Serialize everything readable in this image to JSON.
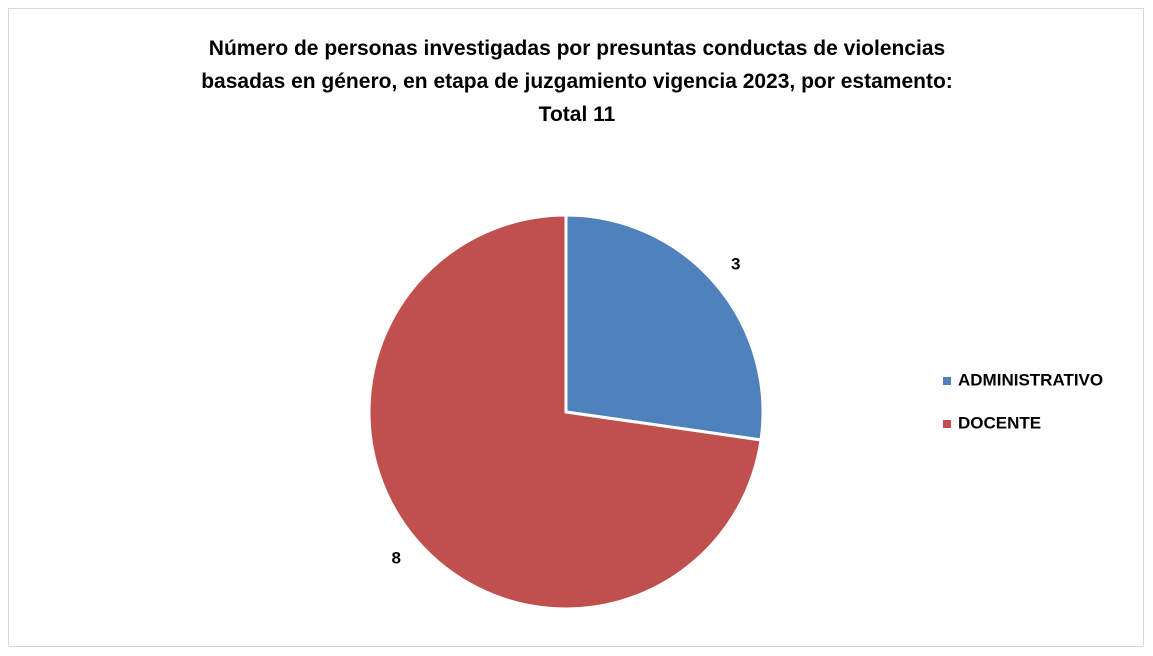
{
  "chart_data": {
    "type": "pie",
    "title": "Número de personas investigadas por presuntas conductas de violencias basadas en género, en etapa de juzgamiento vigencia 2023, por estamento: Total 11",
    "categories": [
      "ADMINISTRATIVO",
      "DOCENTE"
    ],
    "values": [
      3,
      8
    ],
    "colors": [
      "#4f81bd",
      "#c0504d"
    ],
    "legend": "right"
  }
}
